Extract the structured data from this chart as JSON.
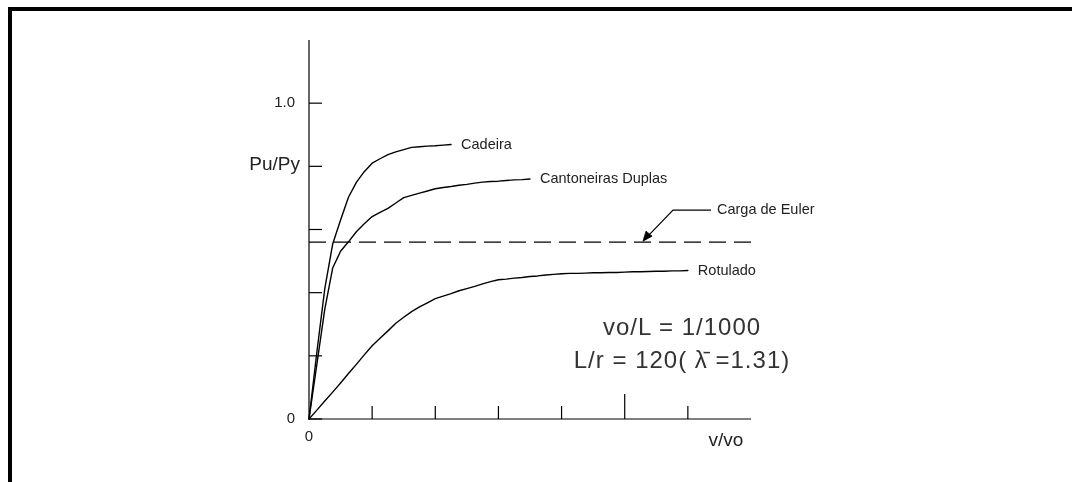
{
  "chart_data": {
    "type": "line",
    "ylabel": "Pu/Py",
    "xlabel": "v/vo",
    "categories": [
      "0",
      null,
      null,
      null,
      null,
      null,
      null,
      null,
      null,
      null,
      null,
      null,
      null,
      null,
      null,
      null,
      null,
      null,
      null,
      null,
      null,
      null,
      null,
      null,
      null,
      null,
      null,
      null,
      null,
      null,
      null,
      null,
      null,
      null,
      null,
      null,
      null,
      null,
      null,
      null,
      null,
      null,
      null,
      null,
      null,
      null,
      null,
      null,
      null,
      null,
      null,
      null,
      null,
      null,
      null,
      null,
      null
    ],
    "ylim": [
      0,
      1.2
    ],
    "yticks": [
      0,
      {
        "value": 0.2,
        "label": null
      },
      {
        "value": 0.4,
        "label": null
      },
      {
        "value": 0.6,
        "label": null
      },
      {
        "value": 0.8,
        "label": null
      },
      {
        "value": 1,
        "label": "1.0"
      }
    ],
    "series": [
      {
        "name": "Cadeira",
        "color": "#000000",
        "values": [
          0,
          0.212,
          0.413,
          0.554,
          0.63,
          0.702,
          0.749,
          0.783,
          0.81,
          0.824,
          0.837,
          0.846,
          0.853,
          0.86,
          0.862,
          0.864,
          0.865,
          0.867,
          0.869,
          null,
          null,
          null,
          null,
          null,
          null,
          null,
          null,
          null,
          null,
          null,
          null,
          null,
          null,
          null,
          null,
          null,
          null,
          null,
          null,
          null,
          null,
          null,
          null,
          null,
          null,
          null,
          null,
          null,
          null,
          null,
          null,
          null,
          null,
          null,
          null,
          null,
          null
        ]
      },
      {
        "name": "Cantoneiras Duplas",
        "color": "#000000",
        "values": [
          0,
          0.174,
          0.348,
          0.478,
          0.531,
          0.561,
          0.593,
          0.618,
          0.641,
          0.654,
          0.667,
          0.684,
          0.701,
          0.708,
          0.715,
          0.722,
          0.729,
          0.733,
          0.736,
          0.74,
          0.743,
          0.747,
          0.75,
          0.752,
          0.753,
          0.755,
          0.757,
          0.758,
          0.76,
          null,
          null,
          null,
          null,
          null,
          null,
          null,
          null,
          null,
          null,
          null,
          null,
          null,
          null,
          null,
          null,
          null,
          null,
          null,
          null,
          null,
          null,
          null,
          null,
          null,
          null,
          null,
          null
        ]
      },
      {
        "name": "Rotulado",
        "color": "#000000",
        "values": [
          0,
          0.028,
          0.057,
          0.085,
          0.114,
          0.144,
          0.173,
          0.203,
          0.232,
          0.256,
          0.279,
          0.303,
          0.322,
          0.34,
          0.355,
          0.368,
          0.381,
          0.389,
          0.397,
          0.406,
          0.413,
          0.42,
          0.428,
          0.435,
          0.441,
          0.443,
          0.446,
          0.448,
          0.451,
          0.453,
          0.456,
          0.458,
          0.46,
          0.461,
          0.461,
          0.462,
          0.463,
          0.463,
          0.464,
          0.464,
          0.465,
          0.466,
          0.466,
          0.467,
          0.468,
          0.468,
          0.469,
          0.469,
          0.47,
          null,
          null,
          null,
          null,
          null,
          null,
          null,
          null
        ]
      }
    ],
    "ref_lines": [
      {
        "axis": "y",
        "value": 0.56,
        "label": "Carga de Euler",
        "line_style": "dashed",
        "color": "#000000"
      }
    ],
    "annotations": [
      "vo/L = 1/1000",
      "L/r = 120( λ̄ =1.31)"
    ]
  }
}
